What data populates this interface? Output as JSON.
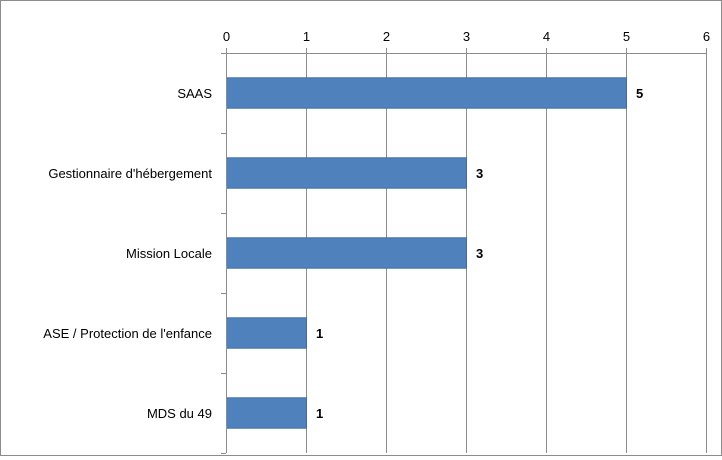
{
  "chart_data": {
    "type": "bar",
    "orientation": "horizontal",
    "categories": [
      "SAAS",
      "Gestionnaire d'hébergement",
      "Mission Locale",
      "ASE / Protection de l'enfance",
      "MDS du 49"
    ],
    "values": [
      5,
      3,
      3,
      1,
      1
    ],
    "data_labels": [
      "5",
      "3",
      "3",
      "1",
      "1"
    ],
    "xlim": [
      0,
      6
    ],
    "x_ticks": [
      "0",
      "1",
      "2",
      "3",
      "4",
      "5",
      "6"
    ],
    "x_axis_position": "top",
    "grid": true,
    "legend": "none",
    "title": "",
    "xlabel": "",
    "ylabel": "",
    "colors": {
      "bar": "#4f81bd",
      "bar_border": "#3c6ea3",
      "grid": "#8c8c8c",
      "axis": "#8c8c8c"
    }
  }
}
